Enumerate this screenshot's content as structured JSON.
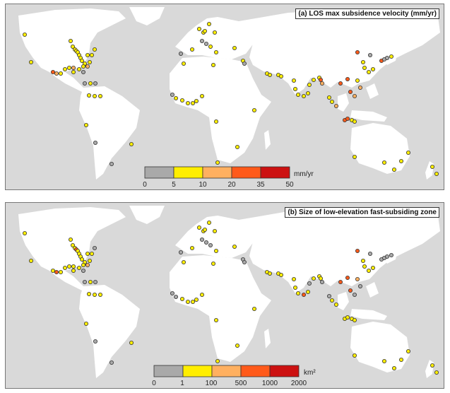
{
  "panel_a": {
    "title": "(a) LOS max subsidence velocity (mm/yr)",
    "colorbar": {
      "ticks": [
        "0",
        "5",
        "10",
        "20",
        "35",
        "50"
      ],
      "unit": "mm/yr",
      "colors": [
        "#a9a9a9",
        "#ffee00",
        "#ffb060",
        "#ff5a1a",
        "#cc1111"
      ]
    }
  },
  "panel_b": {
    "title": "(b) Size of low-elevation fast-subsiding zone",
    "colorbar": {
      "ticks": [
        "0",
        "1",
        "100",
        "500",
        "1000",
        "2000"
      ],
      "unit": "km²",
      "colors": [
        "#a9a9a9",
        "#ffee00",
        "#ffb060",
        "#ff5a1a",
        "#cc1111"
      ]
    }
  }
}
